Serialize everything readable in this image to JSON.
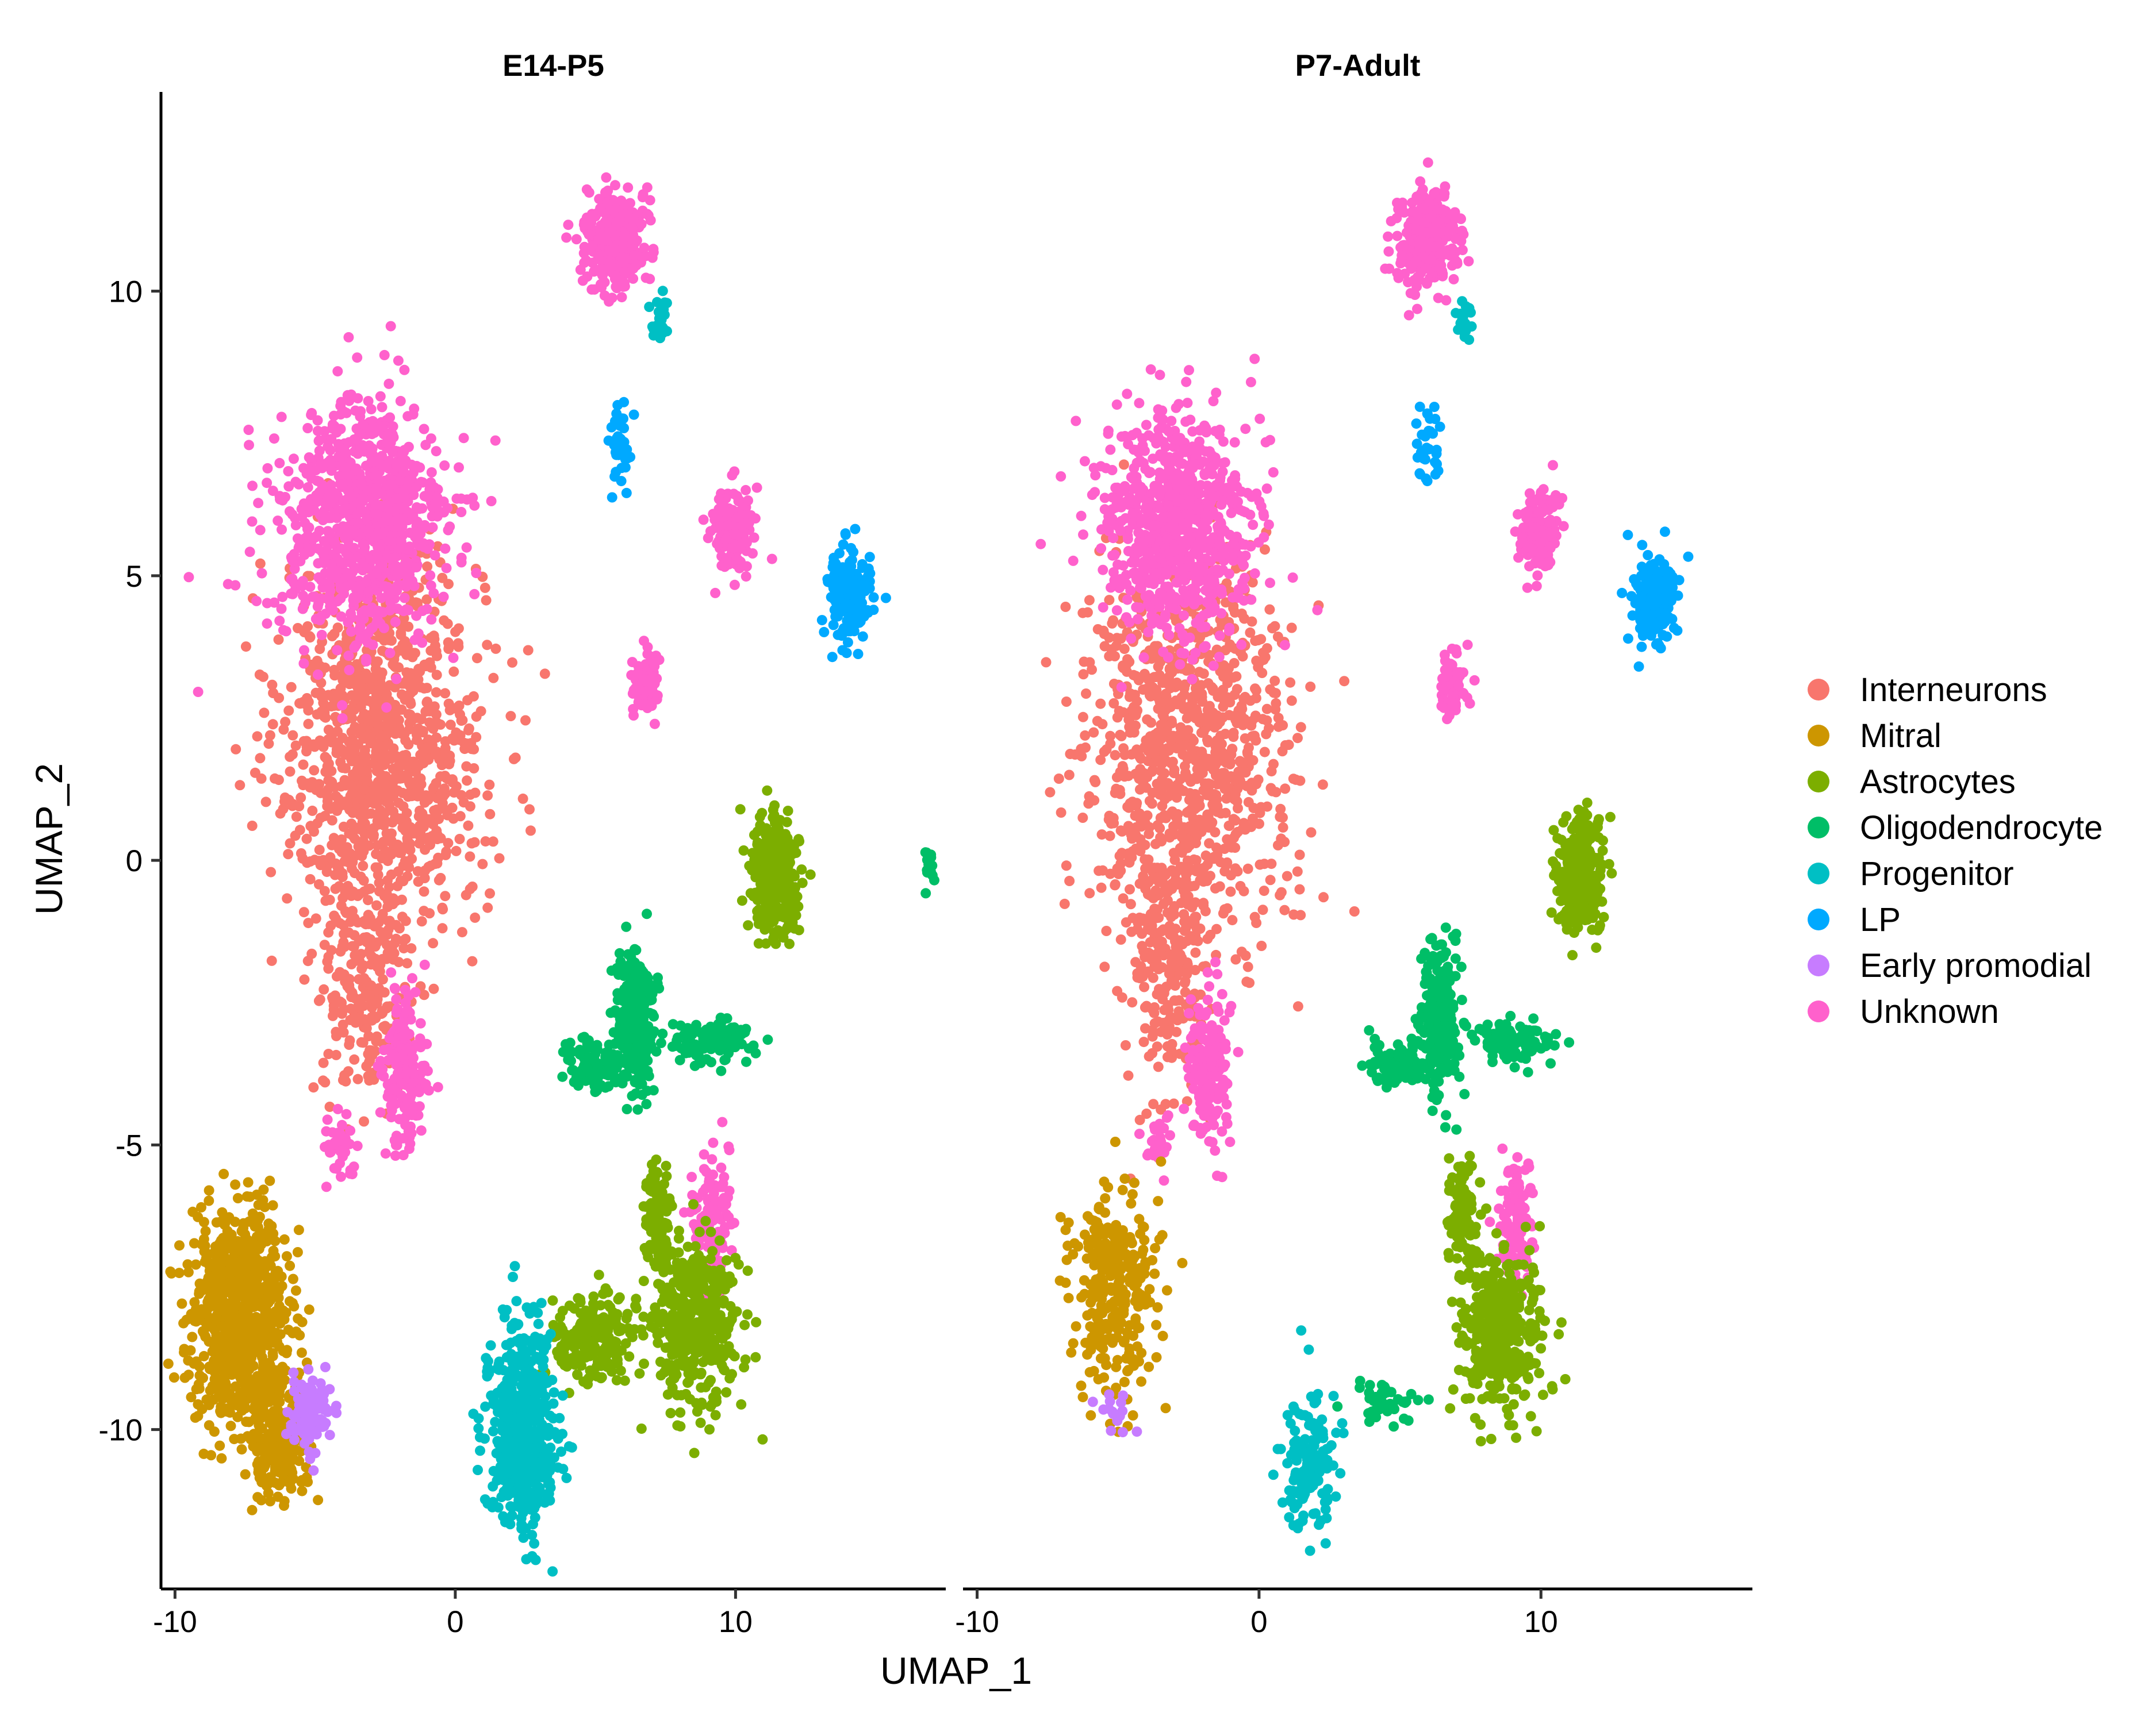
{
  "chart_data": {
    "type": "scatter",
    "xlabel": "UMAP_1",
    "ylabel": "UMAP_2",
    "xlim": [
      -10.5,
      17.5
    ],
    "ylim": [
      -12.8,
      13.5
    ],
    "x_ticks": [
      -10,
      0,
      10
    ],
    "y_ticks": [
      -10,
      -5,
      0,
      5,
      10
    ],
    "grid": false,
    "legend_position": "right",
    "panels": [
      {
        "title": "E14-P5",
        "clusters": [
          {
            "type": "Interneurons",
            "cx": -2.6,
            "cy": 2.0,
            "sx": 2.4,
            "sy": 2.2,
            "n": 1100
          },
          {
            "type": "Interneurons",
            "cx": -3.2,
            "cy": -2.2,
            "sx": 1.0,
            "sy": 1.4,
            "n": 220
          },
          {
            "type": "Unknown",
            "cx": -3.3,
            "cy": 5.9,
            "sx": 2.0,
            "sy": 1.4,
            "n": 900
          },
          {
            "type": "Unknown",
            "cx": -1.8,
            "cy": -3.7,
            "sx": 0.5,
            "sy": 0.9,
            "n": 180
          },
          {
            "type": "Unknown",
            "cx": -4.2,
            "cy": -5.0,
            "sx": 0.4,
            "sy": 0.4,
            "n": 40
          },
          {
            "type": "Unknown",
            "cx": 5.7,
            "cy": 10.9,
            "sx": 0.7,
            "sy": 0.6,
            "n": 300
          },
          {
            "type": "Unknown",
            "cx": 9.9,
            "cy": 5.8,
            "sx": 0.5,
            "sy": 0.5,
            "n": 150
          },
          {
            "type": "Unknown",
            "cx": 6.8,
            "cy": 3.1,
            "sx": 0.3,
            "sy": 0.4,
            "n": 80
          },
          {
            "type": "Unknown",
            "cx": 9.1,
            "cy": -6.4,
            "sx": 0.45,
            "sy": 0.8,
            "n": 120
          },
          {
            "type": "Mitral",
            "cx": -7.6,
            "cy": -8.0,
            "sx": 1.2,
            "sy": 1.2,
            "n": 800
          },
          {
            "type": "Mitral",
            "cx": -6.3,
            "cy": -10.3,
            "sx": 0.8,
            "sy": 0.6,
            "n": 200
          },
          {
            "type": "Early promodial",
            "cx": -5.2,
            "cy": -9.7,
            "sx": 0.5,
            "sy": 0.4,
            "n": 120
          },
          {
            "type": "Astrocytes",
            "cx": 11.4,
            "cy": -0.3,
            "sx": 0.55,
            "sy": 0.65,
            "n": 300
          },
          {
            "type": "Astrocytes",
            "cx": 8.6,
            "cy": -8.2,
            "sx": 1.0,
            "sy": 1.0,
            "n": 400
          },
          {
            "type": "Astrocytes",
            "cx": 5.0,
            "cy": -8.4,
            "sx": 1.0,
            "sy": 0.5,
            "n": 200
          },
          {
            "type": "Astrocytes",
            "cx": 7.2,
            "cy": -6.3,
            "sx": 0.3,
            "sy": 0.7,
            "n": 100
          },
          {
            "type": "Oligodendrocyte",
            "cx": 6.4,
            "cy": -2.8,
            "sx": 0.45,
            "sy": 0.8,
            "n": 300
          },
          {
            "type": "Oligodendrocyte",
            "cx": 9.0,
            "cy": -3.2,
            "sx": 1.0,
            "sy": 0.25,
            "n": 120
          },
          {
            "type": "Oligodendrocyte",
            "cx": 5.0,
            "cy": -3.6,
            "sx": 0.8,
            "sy": 0.3,
            "n": 100
          },
          {
            "type": "Oligodendrocyte",
            "cx": 16.9,
            "cy": -0.1,
            "sx": 0.12,
            "sy": 0.2,
            "n": 20
          },
          {
            "type": "Progenitor",
            "cx": 2.4,
            "cy": -10.0,
            "sx": 0.8,
            "sy": 1.2,
            "n": 500
          },
          {
            "type": "Progenitor",
            "cx": 7.3,
            "cy": 9.5,
            "sx": 0.2,
            "sy": 0.3,
            "n": 30
          },
          {
            "type": "LP",
            "cx": 14.0,
            "cy": 4.6,
            "sx": 0.5,
            "sy": 0.5,
            "n": 200
          },
          {
            "type": "LP",
            "cx": 5.9,
            "cy": 7.3,
            "sx": 0.3,
            "sy": 0.5,
            "n": 40
          }
        ]
      },
      {
        "title": "P7-Adult",
        "clusters": [
          {
            "type": "Interneurons",
            "cx": -2.6,
            "cy": 2.0,
            "sx": 2.4,
            "sy": 2.2,
            "n": 1000
          },
          {
            "type": "Interneurons",
            "cx": -3.2,
            "cy": -2.2,
            "sx": 1.0,
            "sy": 1.4,
            "n": 200
          },
          {
            "type": "Unknown",
            "cx": -3.0,
            "cy": 5.9,
            "sx": 1.8,
            "sy": 1.3,
            "n": 800
          },
          {
            "type": "Unknown",
            "cx": -1.8,
            "cy": -3.7,
            "sx": 0.5,
            "sy": 0.9,
            "n": 170
          },
          {
            "type": "Unknown",
            "cx": -3.6,
            "cy": -5.0,
            "sx": 0.3,
            "sy": 0.4,
            "n": 25
          },
          {
            "type": "Unknown",
            "cx": 5.9,
            "cy": 10.9,
            "sx": 0.7,
            "sy": 0.6,
            "n": 300
          },
          {
            "type": "Unknown",
            "cx": 9.9,
            "cy": 5.8,
            "sx": 0.5,
            "sy": 0.5,
            "n": 140
          },
          {
            "type": "Unknown",
            "cx": 6.8,
            "cy": 3.1,
            "sx": 0.3,
            "sy": 0.4,
            "n": 70
          },
          {
            "type": "Unknown",
            "cx": 9.1,
            "cy": -6.4,
            "sx": 0.4,
            "sy": 0.8,
            "n": 110
          },
          {
            "type": "Mitral",
            "cx": -5.2,
            "cy": -7.5,
            "sx": 1.0,
            "sy": 1.2,
            "n": 300
          },
          {
            "type": "Early promodial",
            "cx": -5.2,
            "cy": -9.7,
            "sx": 0.4,
            "sy": 0.3,
            "n": 15
          },
          {
            "type": "Astrocytes",
            "cx": 11.4,
            "cy": -0.3,
            "sx": 0.55,
            "sy": 0.65,
            "n": 280
          },
          {
            "type": "Astrocytes",
            "cx": 8.6,
            "cy": -8.2,
            "sx": 1.0,
            "sy": 1.0,
            "n": 380
          },
          {
            "type": "Astrocytes",
            "cx": 7.2,
            "cy": -6.3,
            "sx": 0.3,
            "sy": 0.7,
            "n": 100
          },
          {
            "type": "Oligodendrocyte",
            "cx": 6.4,
            "cy": -2.8,
            "sx": 0.45,
            "sy": 0.8,
            "n": 280
          },
          {
            "type": "Oligodendrocyte",
            "cx": 9.0,
            "cy": -3.2,
            "sx": 1.0,
            "sy": 0.25,
            "n": 110
          },
          {
            "type": "Oligodendrocyte",
            "cx": 5.0,
            "cy": -3.6,
            "sx": 0.8,
            "sy": 0.3,
            "n": 90
          },
          {
            "type": "Oligodendrocyte",
            "cx": 4.5,
            "cy": -9.5,
            "sx": 0.8,
            "sy": 0.25,
            "n": 40
          },
          {
            "type": "Progenitor",
            "cx": 1.8,
            "cy": -10.6,
            "sx": 0.6,
            "sy": 0.8,
            "n": 140
          },
          {
            "type": "Progenitor",
            "cx": 7.3,
            "cy": 9.5,
            "sx": 0.2,
            "sy": 0.3,
            "n": 20
          },
          {
            "type": "LP",
            "cx": 14.0,
            "cy": 4.6,
            "sx": 0.5,
            "sy": 0.5,
            "n": 190
          },
          {
            "type": "LP",
            "cx": 6.0,
            "cy": 7.3,
            "sx": 0.3,
            "sy": 0.5,
            "n": 35
          }
        ]
      }
    ],
    "legend": [
      {
        "label": "Interneurons",
        "color": "#F8766D"
      },
      {
        "label": "Mitral",
        "color": "#CD9600"
      },
      {
        "label": "Astrocytes",
        "color": "#7CAE00"
      },
      {
        "label": "Oligodendrocyte",
        "color": "#00BE67"
      },
      {
        "label": "Progenitor",
        "color": "#00BFC4"
      },
      {
        "label": "LP",
        "color": "#00A9FF"
      },
      {
        "label": "Early promodial",
        "color": "#C77CFF"
      },
      {
        "label": "Unknown",
        "color": "#FF61CC"
      }
    ]
  }
}
